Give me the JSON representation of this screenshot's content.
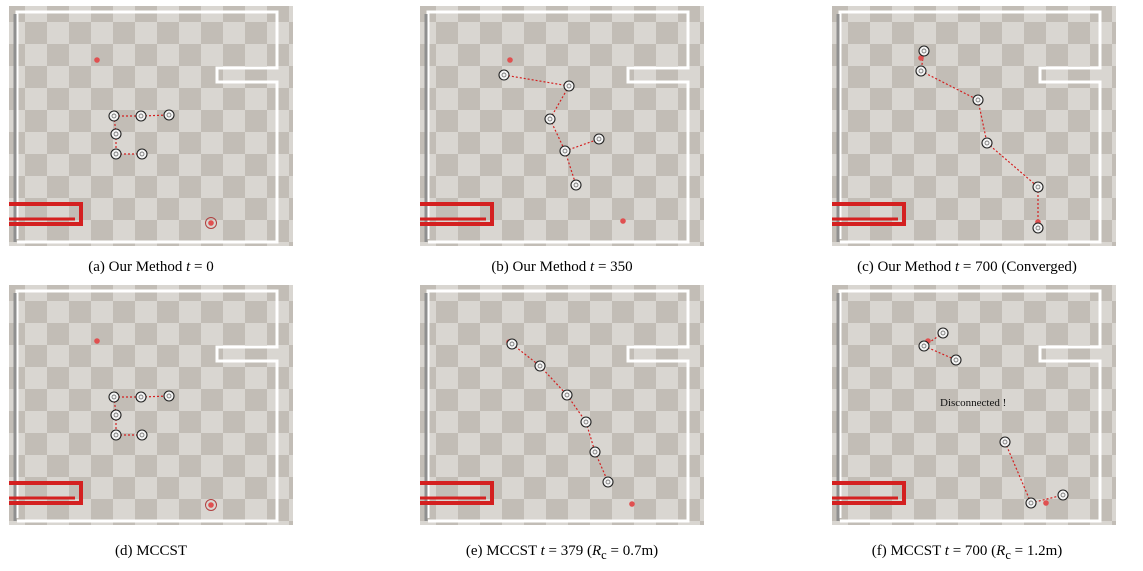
{
  "figure": {
    "panels": [
      {
        "id": "a",
        "caption": "(a) Our Method t = 0",
        "caption_parts": [
          "(a) Our Method ",
          "t",
          " = 0",
          ""
        ],
        "overlay_text": ""
      },
      {
        "id": "b",
        "caption": "(b) Our Method t = 350",
        "caption_parts": [
          "(b) Our Method ",
          "t",
          " = 350",
          ""
        ],
        "overlay_text": ""
      },
      {
        "id": "c",
        "caption": "(c) Our Method t = 700 (Converged)",
        "caption_parts": [
          "(c) Our Method ",
          "t",
          " = 700",
          " (Converged)"
        ],
        "overlay_text": ""
      },
      {
        "id": "d",
        "caption": "(d) MCCST",
        "caption_parts": [
          "(d) MCCST",
          "",
          "",
          ""
        ],
        "overlay_text": ""
      },
      {
        "id": "e",
        "caption": "(e) MCCST t = 379 (Rc = 0.7m)",
        "caption_parts": [
          "(e) MCCST ",
          "t",
          " = 379 (",
          "R",
          "c",
          " = 0.7m)"
        ],
        "overlay_text": ""
      },
      {
        "id": "f",
        "caption": "(f) MCCST t = 700 (Rc = 1.2m)",
        "caption_parts": [
          "(f) MCCST ",
          "t",
          " = 700 (",
          "R",
          "c",
          " = 1.2m)"
        ],
        "overlay_text": "Disconnected !"
      }
    ],
    "colors": {
      "floor_dark": "#c2bdb6",
      "floor_light": "#d9d6d1",
      "wall": "#ffffff",
      "dock": "#d42020",
      "link": "#d42020",
      "target": "#e05050",
      "robot_ring": "#222222"
    }
  }
}
